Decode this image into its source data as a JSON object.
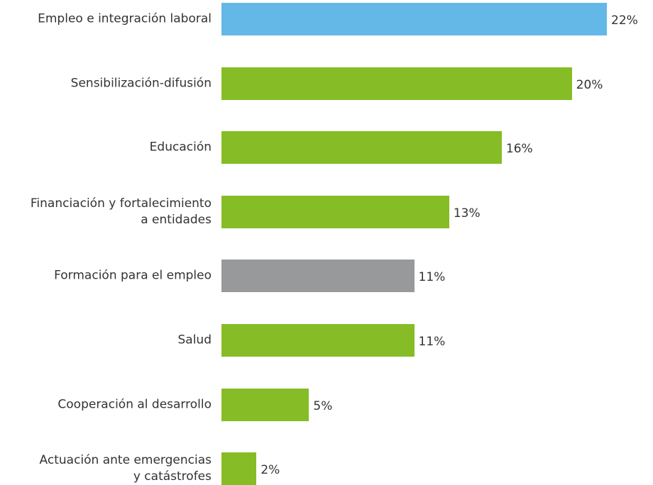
{
  "chart_data": {
    "type": "bar",
    "orientation": "horizontal",
    "categories": [
      "Empleo e integración laboral",
      "Sensibilización-difusión",
      "Educación",
      "Financiación y fortalecimiento\na entidades",
      "Formación para el empleo",
      "Salud",
      "Cooperación al desarrollo",
      "Actuación ante emergencias\ny catástrofes"
    ],
    "values": [
      22,
      20,
      16,
      13,
      11,
      11,
      5,
      2
    ],
    "value_labels": [
      "22%",
      "20%",
      "16%",
      "13%",
      "11%",
      "11%",
      "5%",
      "2%"
    ],
    "colors": [
      "#63b8e8",
      "#86bc25",
      "#86bc25",
      "#86bc25",
      "#97999b",
      "#86bc25",
      "#86bc25",
      "#86bc25"
    ]
  }
}
